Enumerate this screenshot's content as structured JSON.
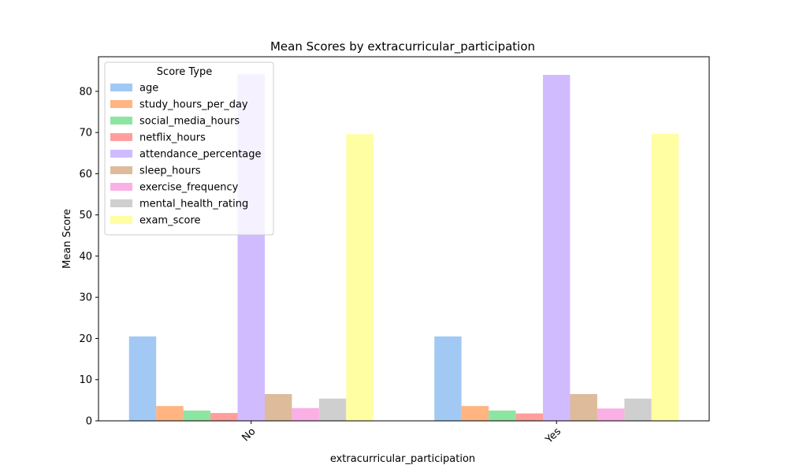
{
  "chart_data": {
    "type": "bar",
    "title": "Mean Scores by extracurricular_participation",
    "xlabel": "extracurricular_participation",
    "ylabel": "Mean Score",
    "categories": [
      "No",
      "Yes"
    ],
    "ylim": [
      0,
      88.4
    ],
    "yticks": [
      0,
      10,
      20,
      30,
      40,
      50,
      60,
      70,
      80
    ],
    "legend": {
      "title": "Score Type",
      "placement": "top-left"
    },
    "grid": false,
    "series": [
      {
        "name": "age",
        "color": "#a1c9f4",
        "values": [
          20.5,
          20.5
        ]
      },
      {
        "name": "study_hours_per_day",
        "color": "#ffb482",
        "values": [
          3.6,
          3.6
        ]
      },
      {
        "name": "social_media_hours",
        "color": "#8de5a1",
        "values": [
          2.5,
          2.5
        ]
      },
      {
        "name": "netflix_hours",
        "color": "#ff9f9b",
        "values": [
          1.9,
          1.8
        ]
      },
      {
        "name": "attendance_percentage",
        "color": "#d0bbff",
        "values": [
          84.2,
          84.0
        ]
      },
      {
        "name": "sleep_hours",
        "color": "#debb9b",
        "values": [
          6.5,
          6.5
        ]
      },
      {
        "name": "exercise_frequency",
        "color": "#fab0e4",
        "values": [
          3.1,
          3.0
        ]
      },
      {
        "name": "mental_health_rating",
        "color": "#cfcfcf",
        "values": [
          5.4,
          5.4
        ]
      },
      {
        "name": "exam_score",
        "color": "#fffea3",
        "values": [
          69.6,
          69.7
        ]
      }
    ]
  }
}
